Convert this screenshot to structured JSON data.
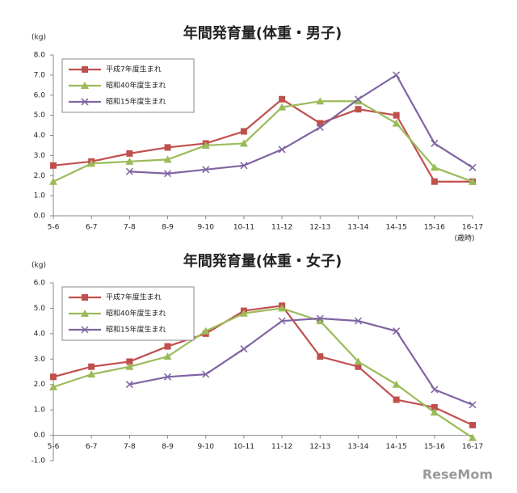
{
  "chart_data": [
    {
      "type": "line",
      "title": "年間発育量(体重・男子)",
      "y_label": "(kg)",
      "x_unit": "(歳時)",
      "categories": [
        "5-6",
        "6-7",
        "7-8",
        "8-9",
        "9-10",
        "10-11",
        "11-12",
        "12-13",
        "13-14",
        "14-15",
        "15-16",
        "16-17"
      ],
      "ylim": [
        0,
        8
      ],
      "yticks": [
        {
          "value": 0,
          "label": "0.0"
        },
        {
          "value": 1,
          "label": "1.0"
        },
        {
          "value": 2,
          "label": "2.0"
        },
        {
          "value": 3,
          "label": "3.0"
        },
        {
          "value": 4,
          "label": "4.0"
        },
        {
          "value": 5,
          "label": "5.0"
        },
        {
          "value": 6,
          "label": "6.0"
        },
        {
          "value": 7,
          "label": "7.0"
        },
        {
          "value": 8,
          "label": "8.0"
        }
      ],
      "legend": "upper left",
      "series": [
        {
          "name": "平成7年度生まれ",
          "color": "#c0504d",
          "marker": "square",
          "values": [
            2.5,
            2.7,
            3.1,
            3.4,
            3.6,
            4.2,
            5.8,
            4.6,
            5.3,
            5.0,
            1.7,
            1.7
          ]
        },
        {
          "name": "昭和40年度生まれ",
          "color": "#9bbb59",
          "marker": "triangle",
          "values": [
            1.7,
            2.6,
            2.7,
            2.8,
            3.5,
            3.6,
            5.4,
            5.7,
            5.7,
            4.6,
            2.4,
            1.7
          ]
        },
        {
          "name": "昭和15年度生まれ",
          "color": "#8064a2",
          "marker": "x",
          "values": [
            null,
            null,
            2.2,
            2.1,
            2.3,
            2.5,
            3.3,
            4.4,
            5.8,
            7.0,
            3.6,
            2.4
          ]
        }
      ]
    },
    {
      "type": "line",
      "title": "年間発育量(体重・女子)",
      "y_label": "(kg)",
      "categories": [
        "5-6",
        "6-7",
        "7-8",
        "8-9",
        "9-10",
        "10-11",
        "11-12",
        "12-13",
        "13-14",
        "14-15",
        "15-16",
        "16-17"
      ],
      "ylim": [
        -1,
        6
      ],
      "yticks": [
        {
          "value": -1,
          "label": "-1.0"
        },
        {
          "value": 0,
          "label": "0.0"
        },
        {
          "value": 1,
          "label": "1.0"
        },
        {
          "value": 2,
          "label": "2.0"
        },
        {
          "value": 3,
          "label": "3.0"
        },
        {
          "value": 4,
          "label": "4.0"
        },
        {
          "value": 5,
          "label": "5.0"
        },
        {
          "value": 6,
          "label": "6.0"
        }
      ],
      "legend": "upper left",
      "series": [
        {
          "name": "平成7年度生まれ",
          "color": "#c0504d",
          "marker": "square",
          "values": [
            2.3,
            2.7,
            2.9,
            3.5,
            4.0,
            4.9,
            5.1,
            3.1,
            2.7,
            1.4,
            1.1,
            0.4
          ]
        },
        {
          "name": "昭和40年度生まれ",
          "color": "#9bbb59",
          "marker": "triangle",
          "values": [
            1.9,
            2.4,
            2.7,
            3.1,
            4.1,
            4.8,
            5.0,
            4.5,
            2.9,
            2.0,
            0.9,
            -0.1
          ]
        },
        {
          "name": "昭和15年度生まれ",
          "color": "#8064a2",
          "marker": "x",
          "values": [
            null,
            null,
            2.0,
            2.3,
            2.4,
            3.4,
            4.5,
            4.6,
            4.5,
            4.1,
            1.8,
            1.2
          ]
        }
      ]
    }
  ],
  "watermark": "ReseMom"
}
